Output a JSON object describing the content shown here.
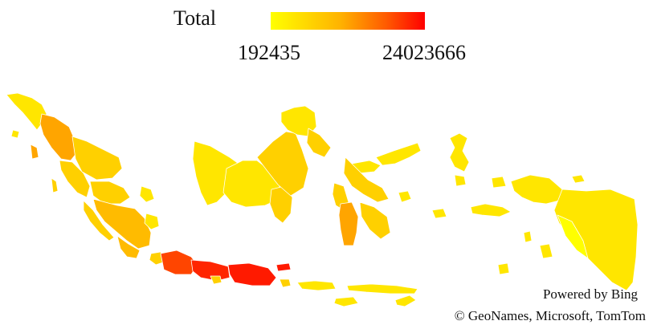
{
  "legend": {
    "title": "Total",
    "min_label": "192435",
    "max_label": "24023666",
    "colors": [
      "#ffff00",
      "#ffb300",
      "#ff5a00",
      "#ff0000"
    ]
  },
  "credits": {
    "powered_by": "Powered by Bing",
    "attribution": "© GeoNames, Microsoft, TomTom"
  },
  "map": {
    "colors": {
      "lowest": "#ffff00",
      "low": "#ffe600",
      "low_mid": "#ffd000",
      "mid": "#ffbb00",
      "mid_high": "#ffa500",
      "high": "#ff4500",
      "highest": "#ff1a00",
      "very_high": "#ff2500"
    }
  }
}
